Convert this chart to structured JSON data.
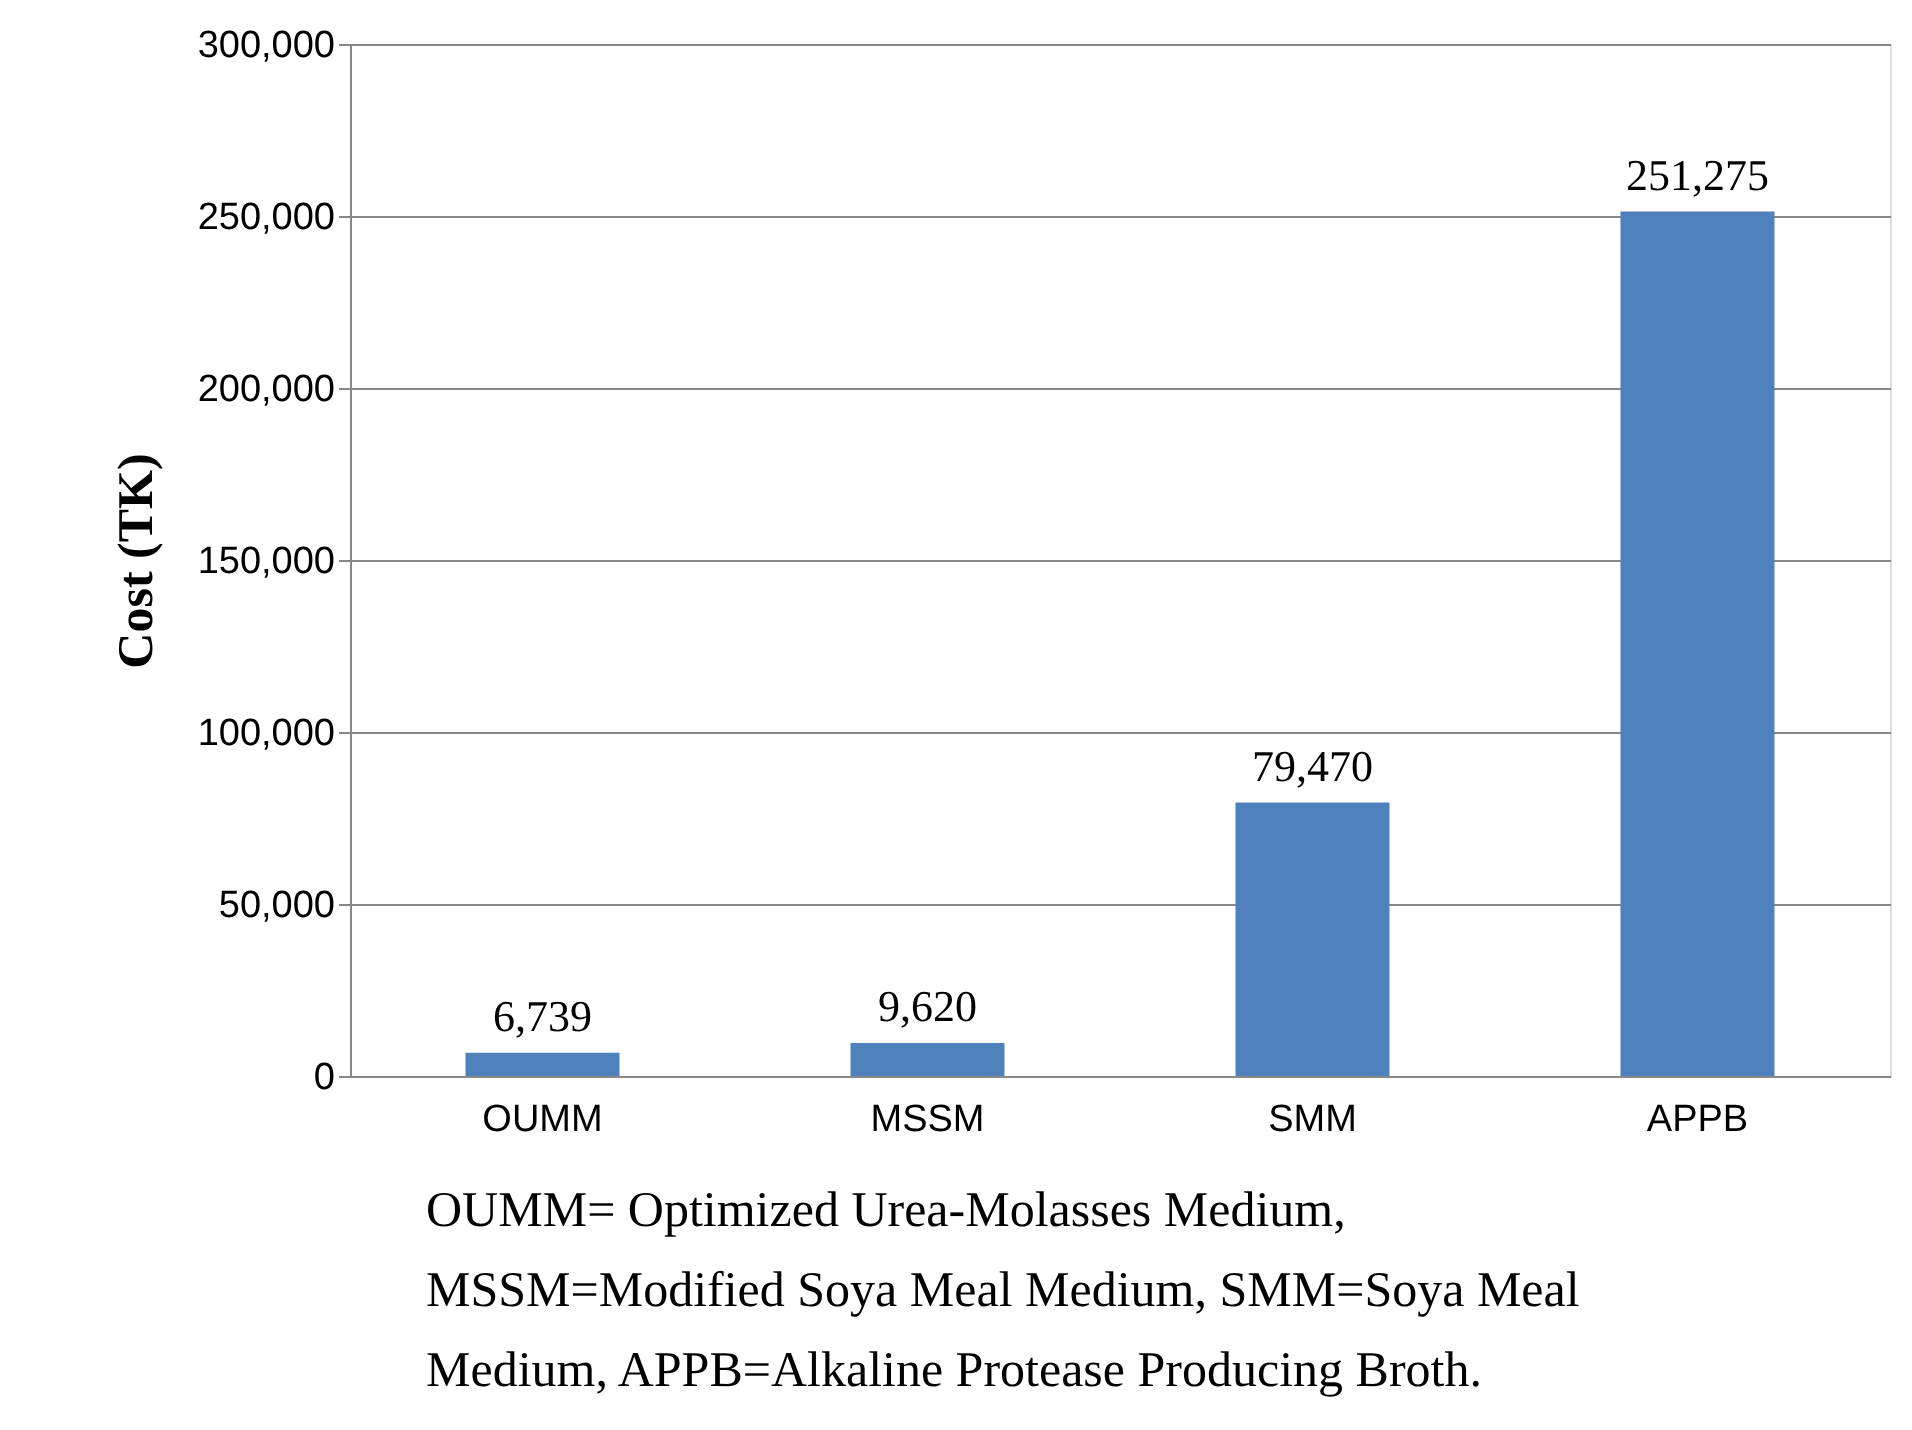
{
  "chart_data": {
    "type": "bar",
    "ylabel": "Cost (TK)",
    "categories": [
      "OUMM",
      "MSSM",
      "SMM",
      "APPB"
    ],
    "values": [
      6739,
      9620,
      79470,
      251275
    ],
    "color": "#4f81bd",
    "ylim": [
      0,
      300000
    ],
    "yticks": [
      {
        "value": 0,
        "label": "0"
      },
      {
        "value": 50000,
        "label": "50,000"
      },
      {
        "value": 100000,
        "label": "100,000"
      },
      {
        "value": 150000,
        "label": "150,000"
      },
      {
        "value": 200000,
        "label": "200,000"
      },
      {
        "value": 250000,
        "label": "250,000"
      },
      {
        "value": 300000,
        "label": "300,000"
      }
    ],
    "grid": "y",
    "value_labels": [
      "6,739",
      "9,620",
      "79,470",
      "251,275"
    ],
    "annotations": [
      "OUMM= Optimized Urea-Molasses Medium,",
      "MSSM=Modified Soya Meal Medium, SMM=Soya Meal",
      "Medium, APPB=Alkaline Protease Producing Broth."
    ]
  }
}
